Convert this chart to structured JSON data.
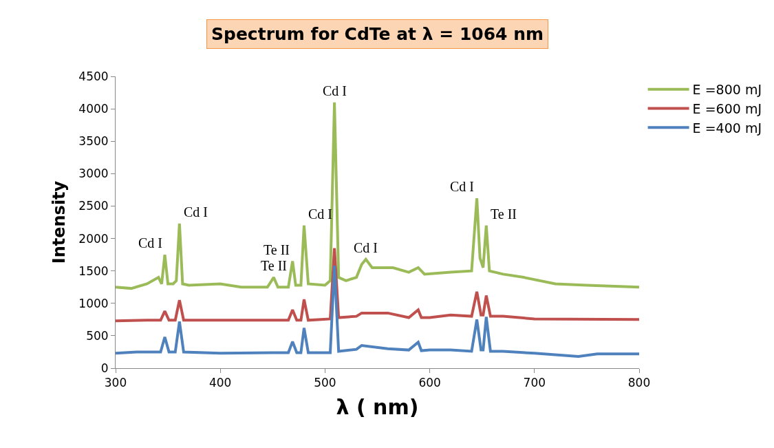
{
  "chart_data": {
    "type": "line",
    "title": "Spectrum for CdTe at λ = 1064 nm",
    "xlabel": "λ ( nm)",
    "ylabel": "Intensity",
    "xlim": [
      300,
      800
    ],
    "xticks": [
      300,
      400,
      500,
      600,
      700,
      800
    ],
    "ylim": [
      0,
      4500
    ],
    "yticks": [
      0,
      500,
      1000,
      1500,
      2000,
      2500,
      3000,
      3500,
      4000,
      4500
    ],
    "legend": "top right",
    "marker": "none",
    "line_style": "solid",
    "series": [
      {
        "name": "E =800 mJ",
        "color": "#9bbb59",
        "x": [
          300,
          315,
          330,
          341,
          344,
          347,
          350,
          355,
          358,
          361,
          364,
          370,
          400,
          420,
          445,
          451,
          455,
          465,
          469,
          472,
          477,
          480,
          484,
          500,
          505,
          509,
          513,
          520,
          530,
          535,
          539,
          545,
          565,
          580,
          589,
          595,
          620,
          640,
          645,
          648,
          651,
          654,
          657,
          670,
          690,
          720,
          750,
          800
        ],
        "values": [
          1250,
          1230,
          1300,
          1400,
          1300,
          1750,
          1300,
          1300,
          1350,
          2230,
          1300,
          1280,
          1300,
          1250,
          1250,
          1400,
          1250,
          1250,
          1650,
          1280,
          1280,
          2200,
          1300,
          1280,
          1350,
          4100,
          1400,
          1350,
          1400,
          1600,
          1680,
          1550,
          1550,
          1480,
          1550,
          1450,
          1480,
          1500,
          2620,
          1700,
          1550,
          2200,
          1500,
          1450,
          1400,
          1300,
          1280,
          1250
        ]
      },
      {
        "name": "E =600 mJ",
        "color": "#c0504d",
        "x": [
          300,
          330,
          343,
          347,
          351,
          357,
          361,
          365,
          400,
          450,
          465,
          469,
          473,
          477,
          480,
          484,
          505,
          509,
          513,
          530,
          535,
          560,
          580,
          589,
          592,
          600,
          620,
          640,
          645,
          649,
          651,
          654,
          658,
          670,
          700,
          800
        ],
        "values": [
          730,
          740,
          740,
          880,
          740,
          740,
          1050,
          740,
          740,
          740,
          740,
          900,
          740,
          740,
          1060,
          740,
          760,
          1850,
          780,
          800,
          850,
          850,
          780,
          900,
          780,
          780,
          820,
          800,
          1180,
          820,
          820,
          1120,
          800,
          800,
          760,
          750
        ]
      },
      {
        "name": "E =400 mJ",
        "color": "#4f81bd",
        "x": [
          300,
          320,
          343,
          347,
          351,
          357,
          361,
          365,
          400,
          450,
          465,
          469,
          473,
          477,
          480,
          484,
          505,
          509,
          513,
          530,
          535,
          560,
          580,
          589,
          592,
          600,
          620,
          640,
          645,
          649,
          651,
          654,
          658,
          670,
          700,
          742,
          760,
          800
        ],
        "values": [
          230,
          250,
          250,
          480,
          250,
          250,
          720,
          250,
          230,
          240,
          240,
          410,
          240,
          240,
          620,
          240,
          240,
          1580,
          260,
          290,
          350,
          300,
          280,
          400,
          270,
          280,
          280,
          260,
          750,
          280,
          280,
          790,
          260,
          260,
          230,
          180,
          220,
          220
        ]
      }
    ],
    "annotations": [
      {
        "text": "Cd I",
        "x": 347,
        "y": 1750
      },
      {
        "text": "Cd I",
        "x": 361,
        "y": 2230
      },
      {
        "text": "Te II",
        "x": 451,
        "y": 1400
      },
      {
        "text": "Te II",
        "x": 469,
        "y": 1650
      },
      {
        "text": "Cd I",
        "x": 480,
        "y": 2200
      },
      {
        "text": "Cd I",
        "x": 509,
        "y": 4100
      },
      {
        "text": "Cd I",
        "x": 539,
        "y": 1680
      },
      {
        "text": "Cd I",
        "x": 645,
        "y": 2620
      },
      {
        "text": "Te II",
        "x": 654,
        "y": 2200
      }
    ]
  }
}
